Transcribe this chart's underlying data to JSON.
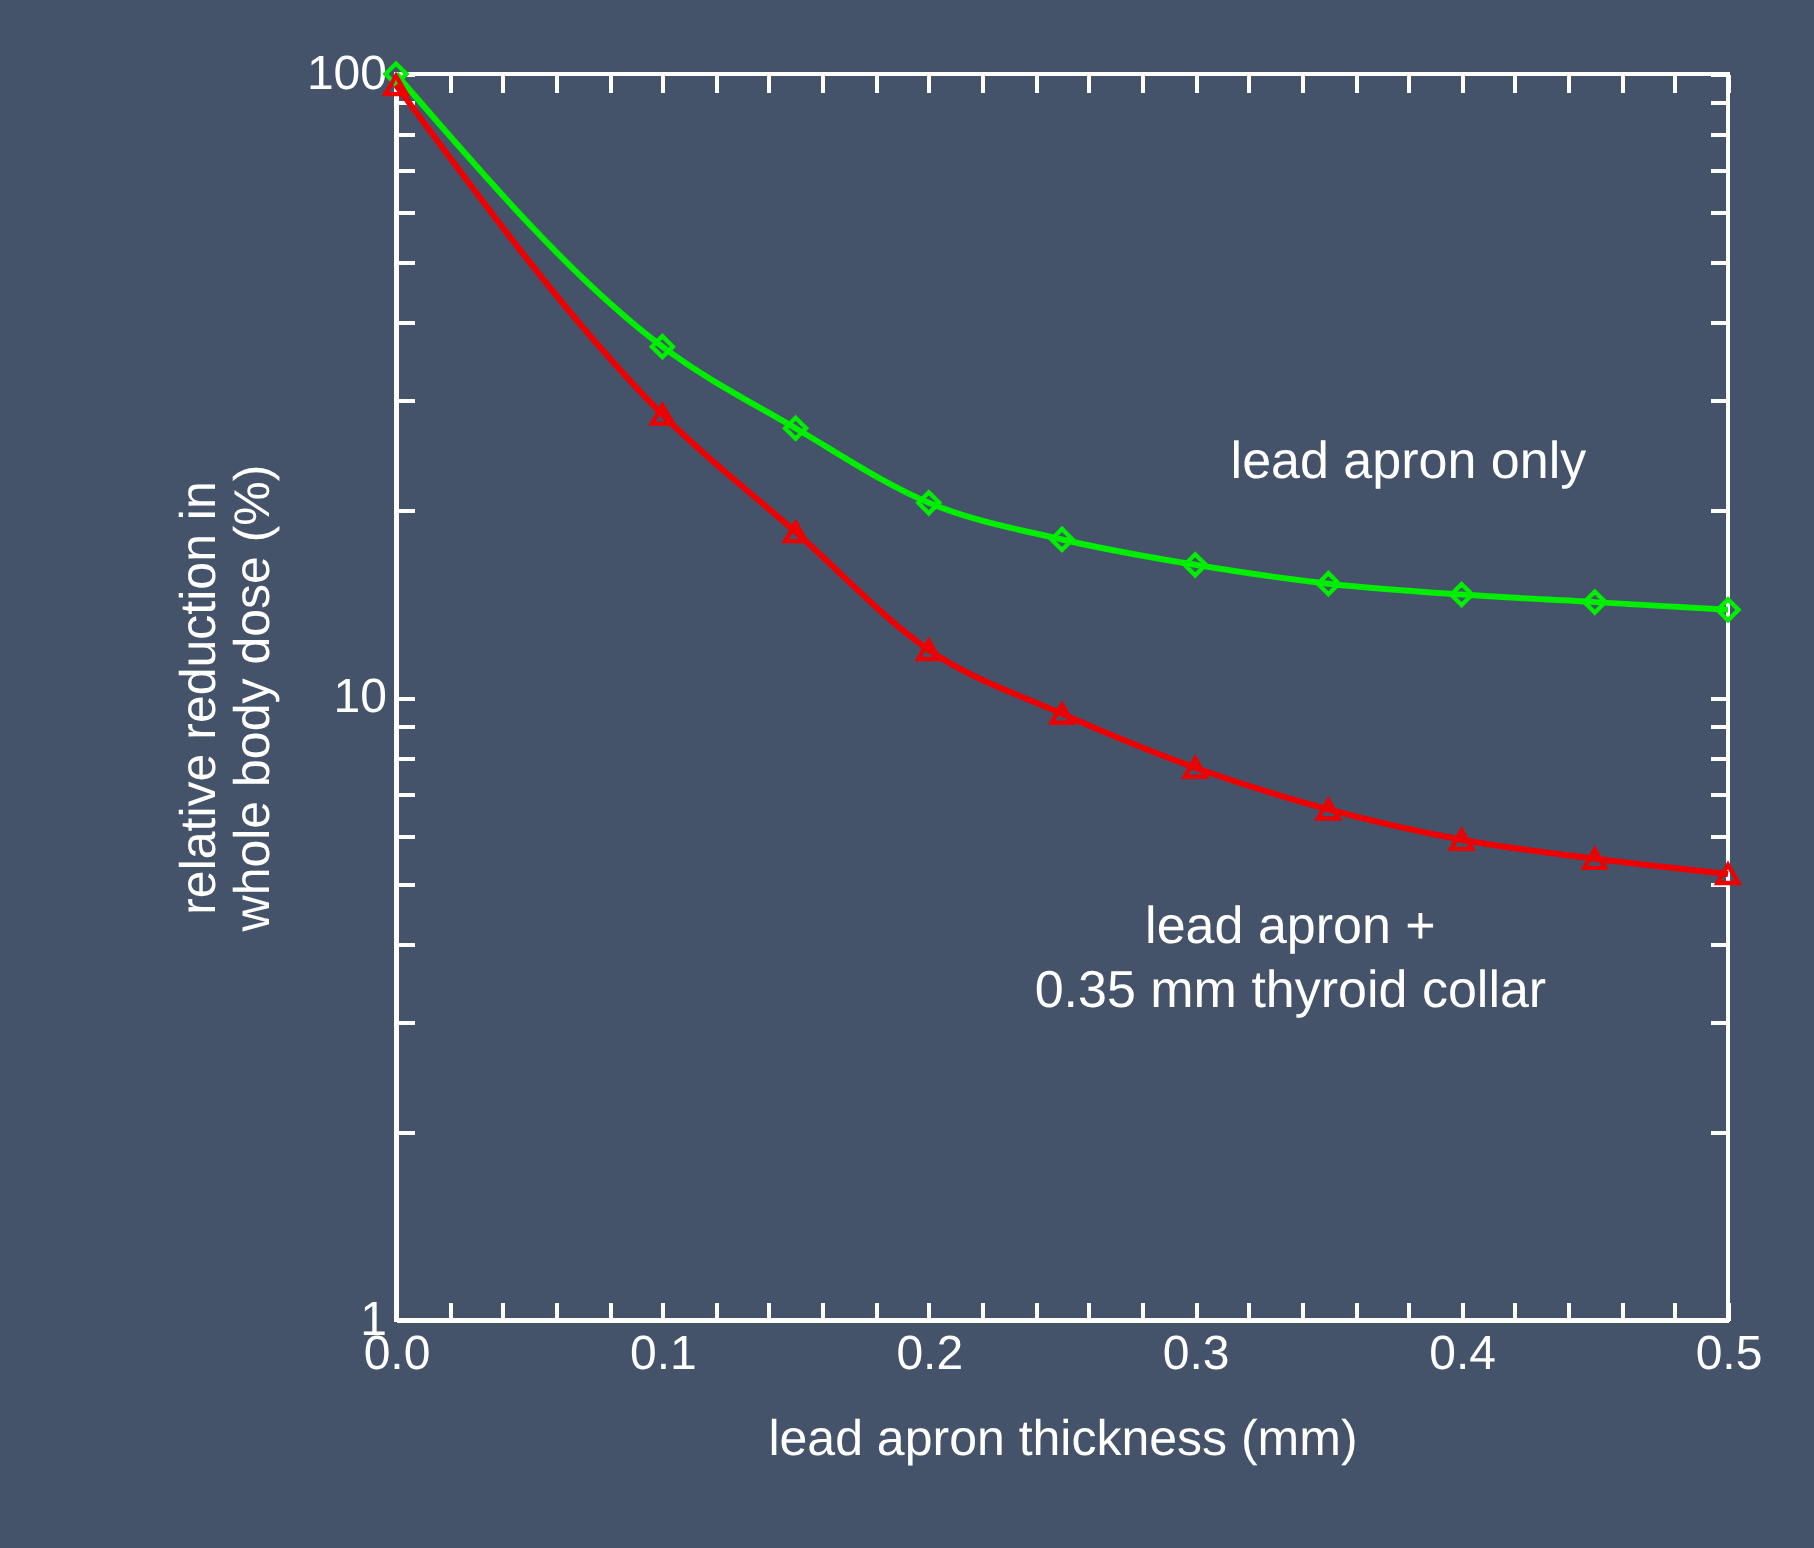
{
  "chart_data": {
    "type": "line",
    "xlabel": "lead apron thickness (mm)",
    "ylabel": "relative reduction in\nwhole body dose (%)",
    "x": [
      0,
      0.1,
      0.15,
      0.2,
      0.25,
      0.3,
      0.35,
      0.4,
      0.45,
      0.5
    ],
    "series": [
      {
        "name": "lead apron only",
        "color": "#00ee00",
        "marker": "diamond",
        "values": [
          100,
          36.5,
          27,
          20.5,
          17.9,
          16.3,
          15.2,
          14.6,
          14.2,
          13.8
        ]
      },
      {
        "name": "lead apron +\n0.35 mm thyroid collar",
        "color": "#ee0000",
        "marker": "triangle",
        "values": [
          96,
          28.4,
          18.4,
          11.9,
          9.4,
          7.7,
          6.6,
          5.9,
          5.5,
          5.2
        ]
      }
    ],
    "log": true,
    "xlim": [
      0,
      0.5
    ],
    "ylim": [
      1,
      100
    ],
    "xticks": [
      {
        "value": 0,
        "label": "0.0"
      },
      {
        "value": 0.02,
        "label": null
      },
      {
        "value": 0.04,
        "label": null
      },
      {
        "value": 0.06,
        "label": null
      },
      {
        "value": 0.08,
        "label": null
      },
      0.1,
      {
        "value": 0.12,
        "label": null
      },
      {
        "value": 0.14,
        "label": null
      },
      {
        "value": 0.16,
        "label": null
      },
      {
        "value": 0.18,
        "label": null
      },
      0.2,
      {
        "value": 0.22,
        "label": null
      },
      {
        "value": 0.24,
        "label": null
      },
      {
        "value": 0.26,
        "label": null
      },
      {
        "value": 0.28,
        "label": null
      },
      0.3,
      {
        "value": 0.32,
        "label": null
      },
      {
        "value": 0.34,
        "label": null
      },
      {
        "value": 0.36,
        "label": null
      },
      {
        "value": 0.38,
        "label": null
      },
      0.4,
      {
        "value": 0.42,
        "label": null
      },
      {
        "value": 0.44,
        "label": null
      },
      {
        "value": 0.46,
        "label": null
      },
      {
        "value": 0.48,
        "label": null
      },
      0.5
    ],
    "yticks": [
      1,
      {
        "value": 2,
        "label": null
      },
      {
        "value": 3,
        "label": null
      },
      {
        "value": 4,
        "label": null
      },
      {
        "value": 5,
        "label": null
      },
      {
        "value": 6,
        "label": null
      },
      {
        "value": 7,
        "label": null
      },
      {
        "value": 8,
        "label": null
      },
      {
        "value": 9,
        "label": null
      },
      10,
      {
        "value": 20,
        "label": null
      },
      {
        "value": 30,
        "label": null
      },
      {
        "value": 40,
        "label": null
      },
      {
        "value": 50,
        "label": null
      },
      {
        "value": 60,
        "label": null
      },
      {
        "value": 70,
        "label": null
      },
      {
        "value": 80,
        "label": null
      },
      {
        "value": 90,
        "label": null
      },
      100
    ],
    "line_style": "solid",
    "grid": false
  }
}
